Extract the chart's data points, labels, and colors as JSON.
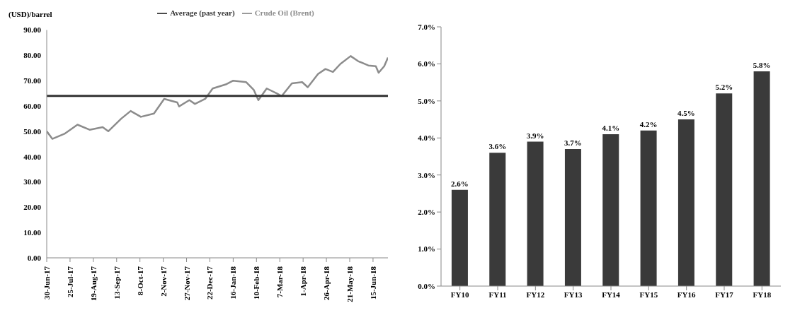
{
  "chart_data": [
    {
      "type": "line",
      "ylabel": "(USD)/barrel",
      "legend": "top",
      "grid": false,
      "xlim": [
        "2017-06-30",
        "2018-07-01"
      ],
      "xticks": [
        {
          "value": "2017-06-30",
          "label": "30-Jun-17"
        },
        {
          "value": "2017-07-25",
          "label": "25-Jul-17"
        },
        {
          "value": "2017-08-19",
          "label": "19-Aug-17"
        },
        {
          "value": "2017-09-13",
          "label": "13-Sep-17"
        },
        {
          "value": "2017-10-08",
          "label": "8-Oct-17"
        },
        {
          "value": "2017-11-02",
          "label": "2-Nov-17"
        },
        {
          "value": "2017-11-27",
          "label": "27-Nov-17"
        },
        {
          "value": "2017-12-22",
          "label": "22-Dec-17"
        },
        {
          "value": "2018-01-16",
          "label": "16-Jan-18"
        },
        {
          "value": "2018-02-10",
          "label": "10-Feb-18"
        },
        {
          "value": "2018-03-07",
          "label": "7-Mar-18"
        },
        {
          "value": "2018-04-01",
          "label": "1-Apr-18"
        },
        {
          "value": "2018-04-26",
          "label": "26-Apr-18"
        },
        {
          "value": "2018-05-21",
          "label": "21-May-18"
        },
        {
          "value": "2018-06-15",
          "label": "15-Jun-18"
        }
      ],
      "ylim": [
        0,
        90
      ],
      "yticks": [
        {
          "value": 0,
          "label": "0.00"
        },
        {
          "value": 10,
          "label": "10.00"
        },
        {
          "value": 20,
          "label": "20.00"
        },
        {
          "value": 30,
          "label": "30.00"
        },
        {
          "value": 40,
          "label": "40.00"
        },
        {
          "value": 50,
          "label": "50.00"
        },
        {
          "value": 60,
          "label": "60.00"
        },
        {
          "value": 70,
          "label": "70.00"
        },
        {
          "value": 80,
          "label": "80.00"
        },
        {
          "value": 90,
          "label": "90.00"
        }
      ],
      "series": [
        {
          "name": "Crude Oil (Brent)",
          "type": "line",
          "color": "#8c8c8c",
          "x": [
            "2017-06-30",
            "2017-07-06",
            "2017-07-19",
            "2017-08-02",
            "2017-08-15",
            "2017-08-29",
            "2017-09-04",
            "2017-09-18",
            "2017-09-28",
            "2017-10-09",
            "2017-10-23",
            "2017-11-03",
            "2017-11-17",
            "2017-11-19",
            "2017-11-30",
            "2017-12-06",
            "2017-12-17",
            "2017-12-25",
            "2018-01-08",
            "2018-01-16",
            "2018-01-30",
            "2018-02-07",
            "2018-02-12",
            "2018-02-21",
            "2018-03-04",
            "2018-03-09",
            "2018-03-20",
            "2018-03-31",
            "2018-04-06",
            "2018-04-17",
            "2018-04-25",
            "2018-05-03",
            "2018-05-11",
            "2018-05-22",
            "2018-05-30",
            "2018-06-10",
            "2018-06-18",
            "2018-06-21",
            "2018-06-27",
            "2018-07-01"
          ],
          "values": [
            50,
            47,
            49,
            52.6,
            50.6,
            51.6,
            50,
            55,
            58,
            55.7,
            57,
            62.8,
            61.4,
            59.8,
            62.3,
            60.8,
            62.8,
            66.9,
            68.5,
            70,
            69.4,
            66.4,
            62.3,
            66.9,
            64.9,
            63.9,
            68.9,
            69.4,
            67.4,
            72.6,
            74.6,
            73.4,
            76.6,
            79.7,
            77.7,
            76,
            75.7,
            73.1,
            75.7,
            79.1
          ]
        },
        {
          "name": "Average (past year)",
          "type": "line",
          "color": "#333333",
          "x": [
            "2017-06-30",
            "2018-07-01"
          ],
          "values": [
            64,
            64
          ]
        }
      ]
    },
    {
      "type": "bar",
      "categories": [
        "FY10",
        "FY11",
        "FY12",
        "FY13",
        "FY14",
        "FY15",
        "FY16",
        "FY17",
        "FY18"
      ],
      "values": [
        2.6,
        3.6,
        3.9,
        3.7,
        4.1,
        4.2,
        4.5,
        5.2,
        5.8
      ],
      "color": "#3a3a3a",
      "value_labels": [
        "2.6%",
        "3.6%",
        "3.9%",
        "3.7%",
        "4.1%",
        "4.2%",
        "4.5%",
        "5.2%",
        "5.8%"
      ],
      "grid": false,
      "ylim": [
        0,
        7
      ],
      "yticks": [
        {
          "value": 0,
          "label": "0.0%"
        },
        {
          "value": 1,
          "label": "1.0%"
        },
        {
          "value": 2,
          "label": "2.0%"
        },
        {
          "value": 3,
          "label": "3.0%"
        },
        {
          "value": 4,
          "label": "4.0%"
        },
        {
          "value": 5,
          "label": "5.0%"
        },
        {
          "value": 6,
          "label": "6.0%"
        },
        {
          "value": 7,
          "label": "7.0%"
        }
      ]
    }
  ]
}
